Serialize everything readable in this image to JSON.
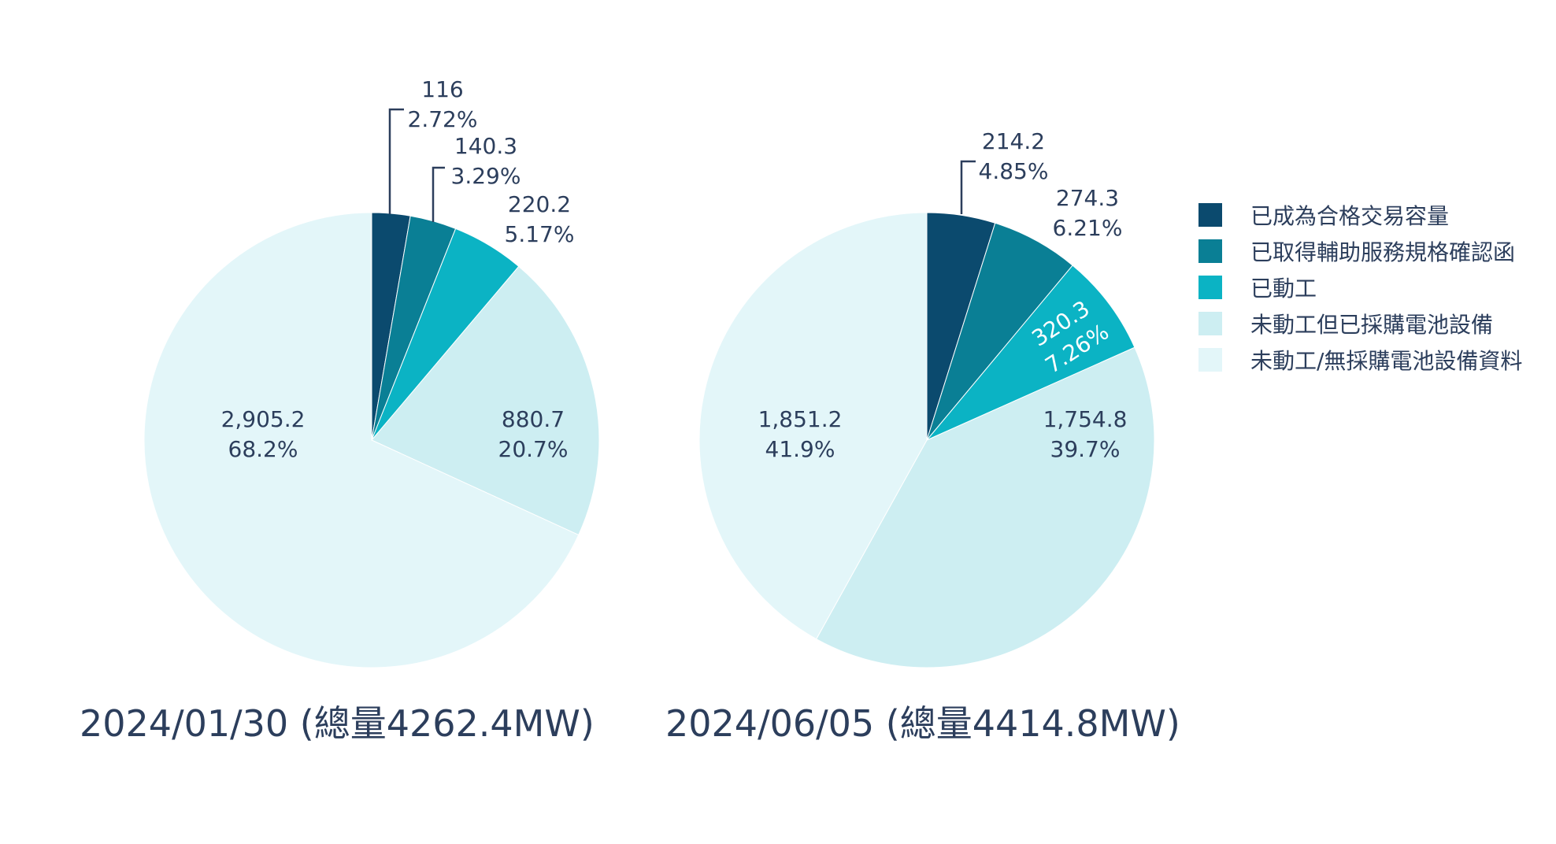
{
  "chart_data": [
    {
      "type": "pie",
      "title": "2024/01/30 (總量4262.4MW)",
      "categories": [
        "已成為合格交易容量",
        "已取得輔助服務規格確認函",
        "已動工",
        "未動工但已採購電池設備",
        "未動工/無採購電池設備資料"
      ],
      "values": [
        116,
        140.3,
        220.2,
        880.7,
        2905.2
      ],
      "value_labels": [
        "116",
        "140.3",
        "220.2",
        "880.7",
        "2,905.2"
      ],
      "percent_labels": [
        "2.72%",
        "3.29%",
        "5.17%",
        "20.7%",
        "68.2%"
      ]
    },
    {
      "type": "pie",
      "title": "2024/06/05 (總量4414.8MW)",
      "categories": [
        "已成為合格交易容量",
        "已取得輔助服務規格確認函",
        "已動工",
        "未動工但已採購電池設備",
        "未動工/無採購電池設備資料"
      ],
      "values": [
        214.2,
        274.3,
        320.3,
        1754.8,
        1851.2
      ],
      "value_labels": [
        "214.2",
        "274.3",
        "320.3",
        "1,754.8",
        "1,851.2"
      ],
      "percent_labels": [
        "4.85%",
        "6.21%",
        "7.26%",
        "39.7%",
        "41.9%"
      ]
    }
  ],
  "legend": {
    "placement": "right",
    "items": [
      {
        "label": "已成為合格交易容量",
        "color": "#0b4a6e"
      },
      {
        "label": "已取得輔助服務規格確認函",
        "color": "#0a7f95"
      },
      {
        "label": "已動工",
        "color": "#0bb3c4"
      },
      {
        "label": "未動工但已採購電池設備",
        "color": "#cdeef2"
      },
      {
        "label": "未動工/無採購電池設備資料",
        "color": "#e3f6f9"
      }
    ]
  }
}
